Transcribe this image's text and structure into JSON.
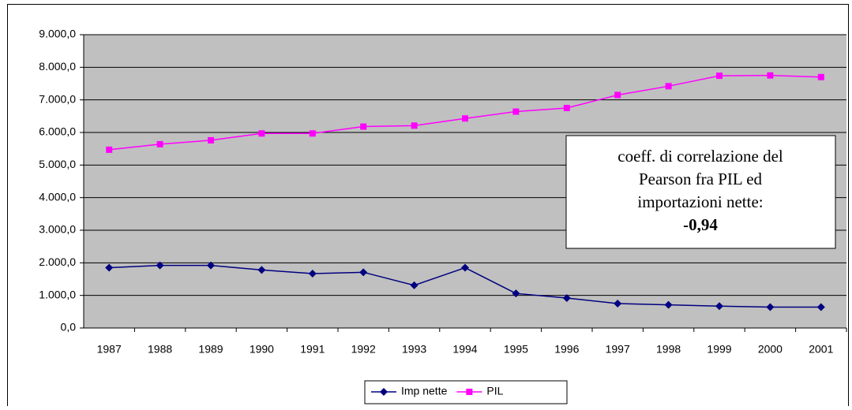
{
  "chart_data": {
    "type": "line",
    "categories": [
      "1987",
      "1988",
      "1989",
      "1990",
      "1991",
      "1992",
      "1993",
      "1994",
      "1995",
      "1996",
      "1997",
      "1998",
      "1999",
      "2000",
      "2001"
    ],
    "series": [
      {
        "name": "Imp nette",
        "color": "#000080",
        "marker": "diamond",
        "values": [
          1850,
          1920,
          1920,
          1780,
          1670,
          1710,
          1310,
          1850,
          1060,
          920,
          750,
          710,
          670,
          640,
          640
        ]
      },
      {
        "name": "PIL",
        "color": "#ff00ff",
        "marker": "square",
        "values": [
          5470,
          5640,
          5760,
          5970,
          5970,
          6180,
          6210,
          6430,
          6640,
          6750,
          7150,
          7420,
          7740,
          7750,
          7700
        ]
      }
    ],
    "ylim": [
      0,
      9000
    ],
    "yticks": [
      {
        "value": 0,
        "label": "0,0"
      },
      {
        "value": 1000,
        "label": "1.000,0"
      },
      {
        "value": 2000,
        "label": "2.000,0"
      },
      {
        "value": 3000,
        "label": "3.000,0"
      },
      {
        "value": 4000,
        "label": "4.000,0"
      },
      {
        "value": 5000,
        "label": "5.000,0"
      },
      {
        "value": 6000,
        "label": "6.000,0"
      },
      {
        "value": 7000,
        "label": "7.000,0"
      },
      {
        "value": 8000,
        "label": "8.000,0"
      },
      {
        "value": 9000,
        "label": "9.000,0"
      }
    ],
    "grid": true,
    "plot_background": "#c0c0c0",
    "legend": "bottom",
    "annotation": [
      "coeff. di correlazione del",
      "Pearson fra PIL ed",
      "importazioni nette:",
      "-0,94"
    ]
  }
}
